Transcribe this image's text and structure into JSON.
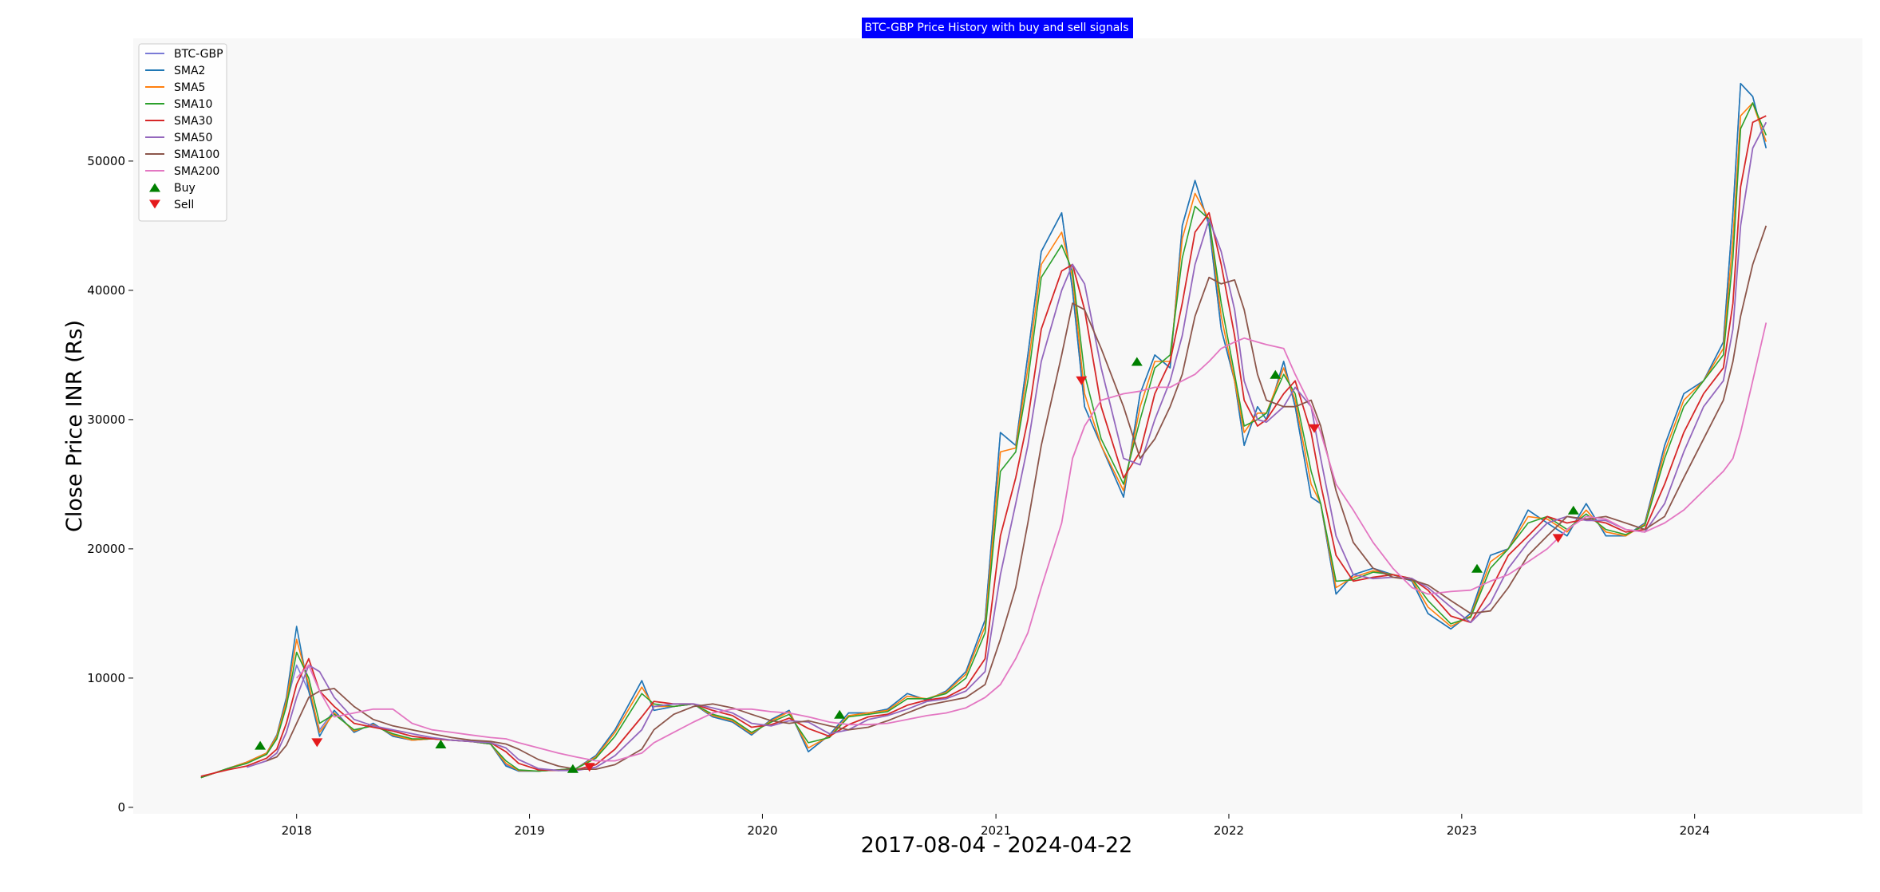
{
  "chart_data": {
    "type": "line",
    "title": "BTC-GBP Price History with buy and sell signals",
    "xlabel": "2017-08-04 - 2024-04-22",
    "ylabel": "Close Price INR (Rs)",
    "x_range": [
      "2017-04-20",
      "2024-09-20"
    ],
    "ylim": [
      -500,
      59500
    ],
    "x_ticks": [
      {
        "date": "2018-01-01",
        "label": "2018"
      },
      {
        "date": "2019-01-01",
        "label": "2019"
      },
      {
        "date": "2020-01-01",
        "label": "2020"
      },
      {
        "date": "2021-01-01",
        "label": "2021"
      },
      {
        "date": "2022-01-01",
        "label": "2022"
      },
      {
        "date": "2023-01-01",
        "label": "2023"
      },
      {
        "date": "2024-01-01",
        "label": "2024"
      }
    ],
    "y_ticks": [
      {
        "value": 0,
        "label": "0"
      },
      {
        "value": 10000,
        "label": "10000"
      },
      {
        "value": 20000,
        "label": "20000"
      },
      {
        "value": 30000,
        "label": "30000"
      },
      {
        "value": 40000,
        "label": "40000"
      },
      {
        "value": 50000,
        "label": "50000"
      }
    ],
    "grid": false,
    "legend_position": "top-left",
    "colors": {
      "plot_background": "#f8f8f8",
      "title_background": "#0000ff",
      "title_text": "#ffffff",
      "buy_marker": "#008000",
      "sell_marker": "#e41a1c"
    },
    "x": [
      "2017-08-04",
      "2017-09-15",
      "2017-10-15",
      "2017-11-15",
      "2017-12-01",
      "2017-12-16",
      "2018-01-01",
      "2018-01-20",
      "2018-02-06",
      "2018-03-01",
      "2018-04-01",
      "2018-05-01",
      "2018-06-01",
      "2018-07-01",
      "2018-08-01",
      "2018-09-01",
      "2018-10-01",
      "2018-11-01",
      "2018-11-25",
      "2018-12-15",
      "2019-01-15",
      "2019-02-15",
      "2019-03-15",
      "2019-04-15",
      "2019-05-15",
      "2019-06-26",
      "2019-07-15",
      "2019-08-15",
      "2019-09-15",
      "2019-10-15",
      "2019-11-15",
      "2019-12-15",
      "2020-01-15",
      "2020-02-12",
      "2020-03-13",
      "2020-04-15",
      "2020-05-15",
      "2020-06-15",
      "2020-07-15",
      "2020-08-15",
      "2020-09-15",
      "2020-10-15",
      "2020-11-15",
      "2020-12-15",
      "2021-01-08",
      "2021-02-01",
      "2021-02-20",
      "2021-03-13",
      "2021-04-14",
      "2021-05-01",
      "2021-05-20",
      "2021-06-15",
      "2021-07-20",
      "2021-08-15",
      "2021-09-07",
      "2021-10-01",
      "2021-10-20",
      "2021-11-09",
      "2021-12-01",
      "2021-12-20",
      "2022-01-10",
      "2022-01-25",
      "2022-02-15",
      "2022-03-01",
      "2022-03-28",
      "2022-04-15",
      "2022-05-10",
      "2022-05-25",
      "2022-06-18",
      "2022-07-15",
      "2022-08-15",
      "2022-09-15",
      "2022-10-15",
      "2022-11-09",
      "2022-12-15",
      "2023-01-15",
      "2023-02-15",
      "2023-03-15",
      "2023-04-15",
      "2023-05-15",
      "2023-06-15",
      "2023-07-15",
      "2023-08-15",
      "2023-09-15",
      "2023-10-15",
      "2023-11-15",
      "2023-12-15",
      "2024-01-15",
      "2024-02-15",
      "2024-03-01",
      "2024-03-13",
      "2024-04-01",
      "2024-04-22"
    ],
    "series": [
      {
        "name": "BTC-GBP",
        "color": "#7a7ad6",
        "values": [
          2300,
          3000,
          3500,
          4200,
          5500,
          8000,
          11000,
          9000,
          6000,
          7500,
          5800,
          6500,
          5500,
          5200,
          5300,
          5200,
          5100,
          4900,
          3300,
          2800,
          2800,
          2900,
          3000,
          4000,
          6000,
          9800,
          7500,
          7800,
          8000,
          7000,
          6600,
          5600,
          6800,
          7500,
          4300,
          5600,
          7300,
          7300,
          7600,
          8800,
          8300,
          9000,
          10500,
          14500,
          29000,
          28000,
          35000,
          43000,
          46000,
          40000,
          31000,
          28000,
          24000,
          32000,
          35000,
          34000,
          45000,
          48500,
          45000,
          37000,
          33000,
          28000,
          31000,
          30000,
          34500,
          31000,
          24000,
          23500,
          16500,
          18000,
          18500,
          18000,
          17500,
          15000,
          13800,
          15000,
          19500,
          20000,
          23000,
          22000,
          21000,
          23500,
          21000,
          21000,
          22000,
          28000,
          32000,
          33000,
          36000,
          46000,
          56000,
          55000,
          51000
        ]
      },
      {
        "name": "SMA2",
        "color": "#1f77b4",
        "values": [
          2300,
          3000,
          3500,
          4200,
          5600,
          8500,
          14000,
          9000,
          5500,
          7500,
          5800,
          6500,
          5500,
          5200,
          5300,
          5200,
          5100,
          4900,
          3200,
          2800,
          2800,
          2900,
          3000,
          4000,
          6000,
          9800,
          7500,
          7800,
          8000,
          7000,
          6600,
          5600,
          6800,
          7500,
          4300,
          5600,
          7300,
          7300,
          7600,
          8800,
          8300,
          9000,
          10500,
          14500,
          29000,
          28000,
          35000,
          43000,
          46000,
          40000,
          31000,
          28000,
          24000,
          32000,
          35000,
          34000,
          45000,
          48500,
          45000,
          37000,
          33000,
          28000,
          31000,
          30000,
          34500,
          31000,
          24000,
          23500,
          16500,
          18000,
          18500,
          18000,
          17500,
          15000,
          13800,
          15000,
          19500,
          20000,
          23000,
          22000,
          21000,
          23500,
          21000,
          21000,
          22000,
          28000,
          32000,
          33000,
          36000,
          46000,
          56000,
          55000,
          51000
        ]
      },
      {
        "name": "SMA5",
        "color": "#ff7f0e",
        "values": [
          2300,
          3000,
          3500,
          4200,
          5500,
          8200,
          13000,
          9500,
          5800,
          7300,
          5900,
          6400,
          5600,
          5200,
          5300,
          5200,
          5100,
          4900,
          3400,
          2850,
          2800,
          2900,
          3000,
          3900,
          5800,
          9300,
          7800,
          7800,
          8000,
          7100,
          6700,
          5700,
          6700,
          7400,
          4600,
          5500,
          7100,
          7300,
          7500,
          8600,
          8400,
          8900,
          10300,
          14000,
          27500,
          27800,
          34000,
          42000,
          44500,
          41000,
          32000,
          28000,
          24500,
          31000,
          34500,
          34500,
          44000,
          47500,
          45500,
          38000,
          33000,
          29000,
          30500,
          30500,
          34000,
          31500,
          25000,
          23500,
          17000,
          17800,
          18300,
          18000,
          17600,
          15500,
          14000,
          14800,
          19000,
          20000,
          22500,
          22300,
          21300,
          23000,
          21300,
          21000,
          21900,
          27500,
          31500,
          33000,
          35500,
          44000,
          53500,
          54500,
          51500
        ]
      },
      {
        "name": "SMA10",
        "color": "#2ca02c",
        "values": [
          2300,
          3000,
          3400,
          4100,
          5300,
          7800,
          12000,
          10000,
          6500,
          7200,
          6000,
          6300,
          5700,
          5300,
          5300,
          5200,
          5100,
          4900,
          3600,
          2900,
          2800,
          2900,
          3000,
          3800,
          5500,
          8800,
          8000,
          7800,
          8000,
          7200,
          6800,
          5800,
          6600,
          7200,
          5000,
          5400,
          7000,
          7200,
          7400,
          8400,
          8400,
          8800,
          10000,
          13500,
          26000,
          27500,
          33000,
          41000,
          43500,
          41500,
          33500,
          28500,
          25000,
          30000,
          34000,
          35000,
          42500,
          46500,
          45500,
          39000,
          33500,
          29500,
          30000,
          30500,
          33500,
          32000,
          26000,
          23500,
          17500,
          17600,
          18200,
          18000,
          17700,
          16000,
          14200,
          14700,
          18500,
          20000,
          22000,
          22500,
          21500,
          22700,
          21500,
          21100,
          21800,
          27000,
          31000,
          33000,
          35000,
          42500,
          52500,
          54500,
          52000
        ]
      },
      {
        "name": "SMA30",
        "color": "#d62728",
        "values": [
          2400,
          2900,
          3200,
          3800,
          4500,
          6500,
          9500,
          11500,
          9000,
          7800,
          6500,
          6200,
          5900,
          5500,
          5300,
          5200,
          5100,
          5000,
          4300,
          3400,
          2900,
          2850,
          2900,
          3300,
          4500,
          7000,
          8200,
          8000,
          8000,
          7500,
          7100,
          6200,
          6400,
          6900,
          6100,
          5500,
          6400,
          7000,
          7200,
          7900,
          8300,
          8500,
          9300,
          11500,
          21000,
          25500,
          30000,
          37000,
          41500,
          42000,
          38500,
          31000,
          25500,
          27500,
          32000,
          34500,
          39000,
          44500,
          46000,
          42000,
          36500,
          31500,
          29500,
          30000,
          32000,
          33000,
          29000,
          25000,
          19500,
          17500,
          17800,
          18000,
          17700,
          16800,
          14800,
          14300,
          16800,
          19500,
          21000,
          22500,
          22000,
          22300,
          22000,
          21300,
          21500,
          25000,
          29000,
          32000,
          34000,
          39000,
          48000,
          53000,
          53500
        ]
      },
      {
        "name": "SMA50",
        "color": "#9467bd",
        "values": [
          null,
          null,
          3100,
          3600,
          4200,
          5800,
          8500,
          11000,
          10500,
          8500,
          6800,
          6300,
          6000,
          5700,
          5400,
          5200,
          5100,
          5000,
          4600,
          3700,
          3000,
          2850,
          2850,
          3100,
          4000,
          6000,
          7800,
          8000,
          8000,
          7700,
          7300,
          6500,
          6300,
          6700,
          6600,
          5700,
          6000,
          6800,
          7100,
          7600,
          8200,
          8400,
          9000,
          10500,
          18000,
          23500,
          28000,
          34500,
          40000,
          42000,
          40500,
          34000,
          27000,
          26500,
          30000,
          33000,
          36500,
          42000,
          45500,
          43000,
          38500,
          33000,
          30000,
          29800,
          31000,
          32500,
          31000,
          27000,
          21000,
          18000,
          17700,
          17800,
          17700,
          17000,
          15500,
          14300,
          15800,
          18500,
          20500,
          22000,
          22500,
          22200,
          22200,
          21500,
          21300,
          23500,
          27500,
          31000,
          33000,
          37000,
          45000,
          51000,
          53000
        ]
      },
      {
        "name": "SMA100",
        "color": "#8c564b",
        "values": [
          null,
          null,
          null,
          3600,
          3900,
          4800,
          6500,
          8500,
          9000,
          9200,
          7800,
          6800,
          6300,
          6000,
          5700,
          5400,
          5200,
          5100,
          4900,
          4500,
          3700,
          3200,
          2950,
          2950,
          3300,
          4500,
          6000,
          7200,
          7800,
          8000,
          7700,
          7200,
          6700,
          6500,
          6700,
          6300,
          6000,
          6200,
          6700,
          7300,
          7900,
          8200,
          8500,
          9500,
          13000,
          17000,
          22000,
          28000,
          35000,
          39000,
          38500,
          35500,
          31000,
          27000,
          28500,
          31000,
          33500,
          38000,
          41000,
          40500,
          40800,
          38500,
          33500,
          31500,
          31000,
          31000,
          31500,
          29500,
          24500,
          20500,
          18500,
          17800,
          17600,
          17200,
          16000,
          15000,
          15200,
          17000,
          19500,
          21000,
          22500,
          22300,
          22500,
          22000,
          21500,
          22500,
          25500,
          28500,
          31500,
          34500,
          38000,
          42000,
          45000
        ]
      },
      {
        "name": "SMA200",
        "color": "#e377c2",
        "values": [
          null,
          null,
          null,
          null,
          null,
          null,
          10000,
          11000,
          9000,
          7000,
          7300,
          7600,
          7600,
          6500,
          6000,
          5800,
          5600,
          5400,
          5300,
          5000,
          4600,
          4200,
          3900,
          3600,
          3600,
          4200,
          5000,
          5800,
          6600,
          7300,
          7600,
          7600,
          7400,
          7300,
          7000,
          6600,
          6400,
          6400,
          6500,
          6800,
          7100,
          7300,
          7700,
          8500,
          9500,
          11500,
          13500,
          17000,
          22000,
          27000,
          29500,
          31500,
          32000,
          32200,
          32500,
          32500,
          33000,
          33500,
          34500,
          35500,
          36000,
          36300,
          36000,
          35800,
          35500,
          33500,
          31000,
          29000,
          25000,
          23000,
          20500,
          18500,
          17000,
          16500,
          16700,
          16800,
          17500,
          18000,
          19000,
          20000,
          21500,
          22500,
          22300,
          21500,
          21300,
          22000,
          23000,
          24500,
          26000,
          27000,
          29000,
          33000,
          37500
        ]
      }
    ],
    "buy_signals": [
      {
        "date": "2017-11-05",
        "value": 4800
      },
      {
        "date": "2018-08-15",
        "value": 4900
      },
      {
        "date": "2019-03-10",
        "value": 3000
      },
      {
        "date": "2020-05-01",
        "value": 7200
      },
      {
        "date": "2021-08-10",
        "value": 34500
      },
      {
        "date": "2022-03-15",
        "value": 33500
      },
      {
        "date": "2023-01-25",
        "value": 18500
      },
      {
        "date": "2023-06-25",
        "value": 23000
      }
    ],
    "sell_signals": [
      {
        "date": "2018-02-02",
        "value": 5000
      },
      {
        "date": "2019-04-05",
        "value": 3100
      },
      {
        "date": "2021-05-15",
        "value": 33000
      },
      {
        "date": "2022-05-15",
        "value": 29300
      },
      {
        "date": "2023-06-01",
        "value": 20800
      }
    ],
    "legend": [
      {
        "label": "BTC-GBP",
        "kind": "line",
        "color": "#7a7ad6"
      },
      {
        "label": "SMA2",
        "kind": "line",
        "color": "#1f77b4"
      },
      {
        "label": "SMA5",
        "kind": "line",
        "color": "#ff7f0e"
      },
      {
        "label": "SMA10",
        "kind": "line",
        "color": "#2ca02c"
      },
      {
        "label": "SMA30",
        "kind": "line",
        "color": "#d62728"
      },
      {
        "label": "SMA50",
        "kind": "line",
        "color": "#9467bd"
      },
      {
        "label": "SMA100",
        "kind": "line",
        "color": "#8c564b"
      },
      {
        "label": "SMA200",
        "kind": "line",
        "color": "#e377c2"
      },
      {
        "label": "Buy",
        "kind": "buy",
        "color": "#008000"
      },
      {
        "label": "Sell",
        "kind": "sell",
        "color": "#e41a1c"
      }
    ]
  }
}
